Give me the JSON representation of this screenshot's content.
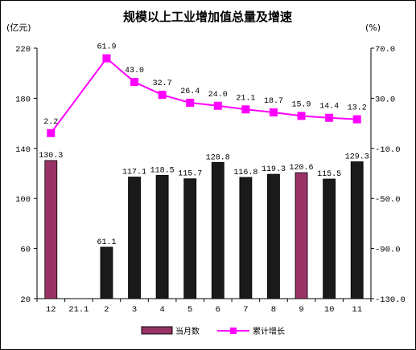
{
  "chart_data": {
    "type": "bar+line",
    "title": "规模以上工业增加值总量及增速",
    "left_unit": "(亿元)",
    "right_unit": "(%)",
    "categories": [
      "12",
      "21.1",
      "2",
      "3",
      "4",
      "5",
      "6",
      "7",
      "8",
      "9",
      "10",
      "11"
    ],
    "left_axis": {
      "min": 20,
      "max": 220,
      "ticks": [
        20,
        60,
        100,
        140,
        180,
        220
      ]
    },
    "right_axis": {
      "min": -130,
      "max": 70,
      "ticks": [
        "-130.0",
        "-90.0",
        "-50.0",
        "-10.0",
        "30.0",
        "70.0"
      ]
    },
    "bars": {
      "name": "当月数",
      "color": "#993366",
      "alt_color": "#1a1a1a",
      "values": [
        130.3,
        null,
        61.1,
        117.1,
        118.5,
        115.7,
        128.8,
        116.8,
        119.3,
        120.6,
        115.5,
        129.3
      ],
      "labels": [
        "130.3",
        "",
        "61.1",
        "117.1",
        "118.5",
        "115.7",
        "128.8",
        "116.8",
        "119.3",
        "120.6",
        "115.5",
        "129.3"
      ],
      "highlight": [
        true,
        false,
        false,
        false,
        false,
        false,
        false,
        false,
        false,
        true,
        false,
        false
      ]
    },
    "line": {
      "name": "累计增长",
      "color": "#ff00ff",
      "values": [
        2.2,
        null,
        61.9,
        43.0,
        32.7,
        26.4,
        24.0,
        21.1,
        18.7,
        15.9,
        14.4,
        13.2
      ],
      "labels": [
        "2.2",
        "",
        "61.9",
        "43.0",
        "32.7",
        "26.4",
        "24.0",
        "21.1",
        "18.7",
        "15.9",
        "14.4",
        "13.2"
      ]
    },
    "legend_position": "bottom"
  }
}
